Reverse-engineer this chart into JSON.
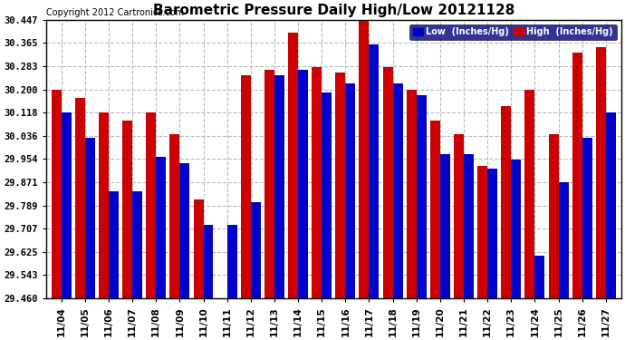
{
  "title": "Barometric Pressure Daily High/Low 20121128",
  "copyright": "Copyright 2012 Cartronics.com",
  "dates": [
    "11/04",
    "11/05",
    "11/06",
    "11/07",
    "11/08",
    "11/09",
    "11/10",
    "11/11",
    "11/12",
    "11/13",
    "11/14",
    "11/15",
    "11/16",
    "11/17",
    "11/18",
    "11/19",
    "11/20",
    "11/21",
    "11/22",
    "11/23",
    "11/24",
    "11/25",
    "11/26",
    "11/27"
  ],
  "low": [
    30.12,
    30.03,
    29.84,
    29.84,
    29.96,
    29.94,
    29.72,
    29.72,
    29.8,
    30.25,
    30.27,
    30.19,
    30.22,
    30.36,
    30.22,
    30.18,
    29.97,
    29.97,
    29.92,
    29.95,
    29.61,
    29.87,
    30.03,
    30.12
  ],
  "high": [
    30.2,
    30.17,
    30.12,
    30.09,
    30.12,
    30.04,
    29.81,
    29.46,
    30.25,
    30.27,
    30.4,
    30.28,
    30.26,
    30.45,
    30.28,
    30.2,
    30.09,
    30.04,
    29.93,
    30.14,
    30.2,
    30.04,
    30.33,
    30.35
  ],
  "ylim_min": 29.46,
  "ylim_max": 30.447,
  "yticks": [
    29.46,
    29.543,
    29.625,
    29.707,
    29.789,
    29.871,
    29.954,
    30.036,
    30.118,
    30.2,
    30.283,
    30.365,
    30.447
  ],
  "low_color": "#0000cc",
  "high_color": "#cc0000",
  "bg_color": "#ffffff",
  "grid_color": "#bbbbbb",
  "legend_low_label": "Low  (Inches/Hg)",
  "legend_high_label": "High  (Inches/Hg)"
}
